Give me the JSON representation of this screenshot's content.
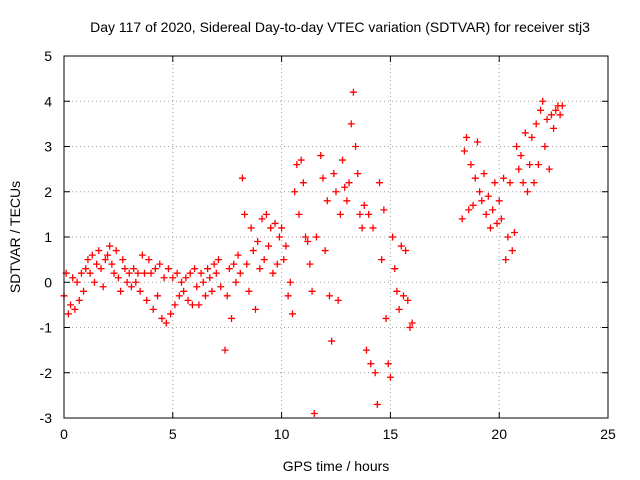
{
  "chart_data": {
    "type": "scatter",
    "title": "Day 117 of 2020, Sidereal Day-to-day VTEC variation (SDTVAR) for receiver stj3",
    "xlabel": "GPS time / hours",
    "ylabel": "SDTVAR / TECUs",
    "xlim": [
      0,
      25
    ],
    "ylim": [
      -3,
      5
    ],
    "xticks": [
      0,
      5,
      10,
      15,
      20,
      25
    ],
    "yticks": [
      -3,
      -2,
      -1,
      0,
      1,
      2,
      3,
      4,
      5
    ],
    "grid": true,
    "marker": "+",
    "color": "#ff0000",
    "series": [
      {
        "name": "SDTVAR",
        "points": [
          [
            0.0,
            -0.3
          ],
          [
            0.1,
            0.2
          ],
          [
            0.2,
            -0.7
          ],
          [
            0.3,
            -0.5
          ],
          [
            0.4,
            0.1
          ],
          [
            0.5,
            -0.6
          ],
          [
            0.6,
            0.0
          ],
          [
            0.7,
            -0.4
          ],
          [
            0.8,
            0.2
          ],
          [
            0.9,
            -0.2
          ],
          [
            1.0,
            0.3
          ],
          [
            1.1,
            0.5
          ],
          [
            1.2,
            0.2
          ],
          [
            1.3,
            0.6
          ],
          [
            1.4,
            0.0
          ],
          [
            1.5,
            0.4
          ],
          [
            1.6,
            0.7
          ],
          [
            1.7,
            0.3
          ],
          [
            1.8,
            -0.1
          ],
          [
            1.9,
            0.5
          ],
          [
            2.0,
            0.6
          ],
          [
            2.1,
            0.8
          ],
          [
            2.2,
            0.4
          ],
          [
            2.3,
            0.2
          ],
          [
            2.4,
            0.7
          ],
          [
            2.5,
            0.1
          ],
          [
            2.6,
            -0.2
          ],
          [
            2.7,
            0.5
          ],
          [
            2.8,
            0.3
          ],
          [
            2.9,
            0.0
          ],
          [
            3.0,
            0.2
          ],
          [
            3.1,
            -0.1
          ],
          [
            3.2,
            0.3
          ],
          [
            3.3,
            0.0
          ],
          [
            3.4,
            0.2
          ],
          [
            3.5,
            -0.2
          ],
          [
            3.6,
            0.6
          ],
          [
            3.7,
            0.2
          ],
          [
            3.8,
            -0.4
          ],
          [
            3.9,
            0.5
          ],
          [
            4.0,
            0.2
          ],
          [
            4.1,
            -0.6
          ],
          [
            4.2,
            0.3
          ],
          [
            4.3,
            -0.3
          ],
          [
            4.4,
            0.4
          ],
          [
            4.5,
            -0.8
          ],
          [
            4.6,
            0.1
          ],
          [
            4.7,
            -0.9
          ],
          [
            4.8,
            0.3
          ],
          [
            4.9,
            -0.7
          ],
          [
            5.0,
            0.1
          ],
          [
            5.1,
            -0.5
          ],
          [
            5.2,
            0.2
          ],
          [
            5.3,
            -0.3
          ],
          [
            5.4,
            0.0
          ],
          [
            5.5,
            -0.2
          ],
          [
            5.6,
            0.1
          ],
          [
            5.7,
            -0.4
          ],
          [
            5.8,
            0.2
          ],
          [
            5.9,
            -0.5
          ],
          [
            6.0,
            0.3
          ],
          [
            6.1,
            -0.1
          ],
          [
            6.2,
            -0.5
          ],
          [
            6.3,
            0.2
          ],
          [
            6.4,
            0.0
          ],
          [
            6.5,
            -0.3
          ],
          [
            6.6,
            0.3
          ],
          [
            6.7,
            0.1
          ],
          [
            6.8,
            -0.2
          ],
          [
            6.9,
            0.4
          ],
          [
            7.0,
            0.2
          ],
          [
            7.1,
            0.5
          ],
          [
            7.2,
            -0.1
          ],
          [
            7.4,
            -1.5
          ],
          [
            7.5,
            -0.3
          ],
          [
            7.6,
            0.3
          ],
          [
            7.7,
            -0.8
          ],
          [
            7.8,
            0.4
          ],
          [
            7.9,
            0.0
          ],
          [
            8.0,
            0.6
          ],
          [
            8.1,
            0.2
          ],
          [
            8.2,
            2.3
          ],
          [
            8.3,
            1.5
          ],
          [
            8.4,
            0.4
          ],
          [
            8.5,
            -0.2
          ],
          [
            8.6,
            1.2
          ],
          [
            8.7,
            0.7
          ],
          [
            8.8,
            -0.6
          ],
          [
            8.9,
            0.9
          ],
          [
            9.0,
            0.3
          ],
          [
            9.1,
            1.4
          ],
          [
            9.2,
            0.5
          ],
          [
            9.3,
            1.5
          ],
          [
            9.4,
            0.8
          ],
          [
            9.5,
            1.2
          ],
          [
            9.6,
            0.2
          ],
          [
            9.7,
            1.3
          ],
          [
            9.8,
            0.4
          ],
          [
            9.9,
            1.0
          ],
          [
            10.0,
            1.2
          ],
          [
            10.1,
            0.5
          ],
          [
            10.2,
            0.8
          ],
          [
            10.3,
            -0.3
          ],
          [
            10.4,
            0.0
          ],
          [
            10.5,
            -0.7
          ],
          [
            10.6,
            2.0
          ],
          [
            10.7,
            2.6
          ],
          [
            10.8,
            1.5
          ],
          [
            10.9,
            2.7
          ],
          [
            11.0,
            2.2
          ],
          [
            11.1,
            1.0
          ],
          [
            11.2,
            0.9
          ],
          [
            11.3,
            0.4
          ],
          [
            11.4,
            -0.2
          ],
          [
            11.5,
            -2.9
          ],
          [
            11.6,
            1.0
          ],
          [
            11.8,
            2.8
          ],
          [
            11.9,
            2.3
          ],
          [
            12.0,
            0.7
          ],
          [
            12.1,
            1.8
          ],
          [
            12.2,
            -0.3
          ],
          [
            12.3,
            -1.3
          ],
          [
            12.4,
            2.4
          ],
          [
            12.5,
            2.0
          ],
          [
            12.6,
            -0.4
          ],
          [
            12.7,
            1.5
          ],
          [
            12.8,
            2.7
          ],
          [
            12.9,
            2.1
          ],
          [
            13.0,
            1.8
          ],
          [
            13.1,
            2.2
          ],
          [
            13.2,
            3.5
          ],
          [
            13.3,
            4.2
          ],
          [
            13.4,
            3.0
          ],
          [
            13.5,
            2.4
          ],
          [
            13.6,
            1.5
          ],
          [
            13.7,
            1.2
          ],
          [
            13.8,
            1.7
          ],
          [
            13.9,
            -1.5
          ],
          [
            14.0,
            1.5
          ],
          [
            14.1,
            -1.8
          ],
          [
            14.2,
            1.2
          ],
          [
            14.3,
            -2.0
          ],
          [
            14.4,
            -2.7
          ],
          [
            14.5,
            2.2
          ],
          [
            14.6,
            0.5
          ],
          [
            14.7,
            1.6
          ],
          [
            14.8,
            -0.8
          ],
          [
            14.9,
            -1.8
          ],
          [
            15.0,
            -2.1
          ],
          [
            15.1,
            1.0
          ],
          [
            15.2,
            0.3
          ],
          [
            15.3,
            -0.2
          ],
          [
            15.4,
            -0.6
          ],
          [
            15.5,
            0.8
          ],
          [
            15.6,
            -0.3
          ],
          [
            15.7,
            0.7
          ],
          [
            15.8,
            -0.4
          ],
          [
            15.9,
            -1.0
          ],
          [
            16.0,
            -0.9
          ],
          [
            18.3,
            1.4
          ],
          [
            18.4,
            2.9
          ],
          [
            18.5,
            3.2
          ],
          [
            18.6,
            1.6
          ],
          [
            18.7,
            2.6
          ],
          [
            18.8,
            1.7
          ],
          [
            18.9,
            2.3
          ],
          [
            19.0,
            3.1
          ],
          [
            19.1,
            2.0
          ],
          [
            19.2,
            1.8
          ],
          [
            19.3,
            2.4
          ],
          [
            19.4,
            1.5
          ],
          [
            19.5,
            1.9
          ],
          [
            19.6,
            1.2
          ],
          [
            19.7,
            1.6
          ],
          [
            19.8,
            2.2
          ],
          [
            19.9,
            1.3
          ],
          [
            20.0,
            1.8
          ],
          [
            20.1,
            1.4
          ],
          [
            20.2,
            2.3
          ],
          [
            20.3,
            0.5
          ],
          [
            20.4,
            1.0
          ],
          [
            20.5,
            2.2
          ],
          [
            20.6,
            0.7
          ],
          [
            20.7,
            1.1
          ],
          [
            20.8,
            3.0
          ],
          [
            20.9,
            2.5
          ],
          [
            21.0,
            2.8
          ],
          [
            21.1,
            2.2
          ],
          [
            21.2,
            3.3
          ],
          [
            21.3,
            2.0
          ],
          [
            21.4,
            2.6
          ],
          [
            21.5,
            3.2
          ],
          [
            21.6,
            2.2
          ],
          [
            21.7,
            3.5
          ],
          [
            21.8,
            2.6
          ],
          [
            21.9,
            3.8
          ],
          [
            22.0,
            4.0
          ],
          [
            22.1,
            3.0
          ],
          [
            22.2,
            3.6
          ],
          [
            22.3,
            2.5
          ],
          [
            22.4,
            3.7
          ],
          [
            22.5,
            3.4
          ],
          [
            22.6,
            3.8
          ],
          [
            22.7,
            3.9
          ],
          [
            22.8,
            3.7
          ],
          [
            22.9,
            3.9
          ]
        ]
      }
    ]
  }
}
